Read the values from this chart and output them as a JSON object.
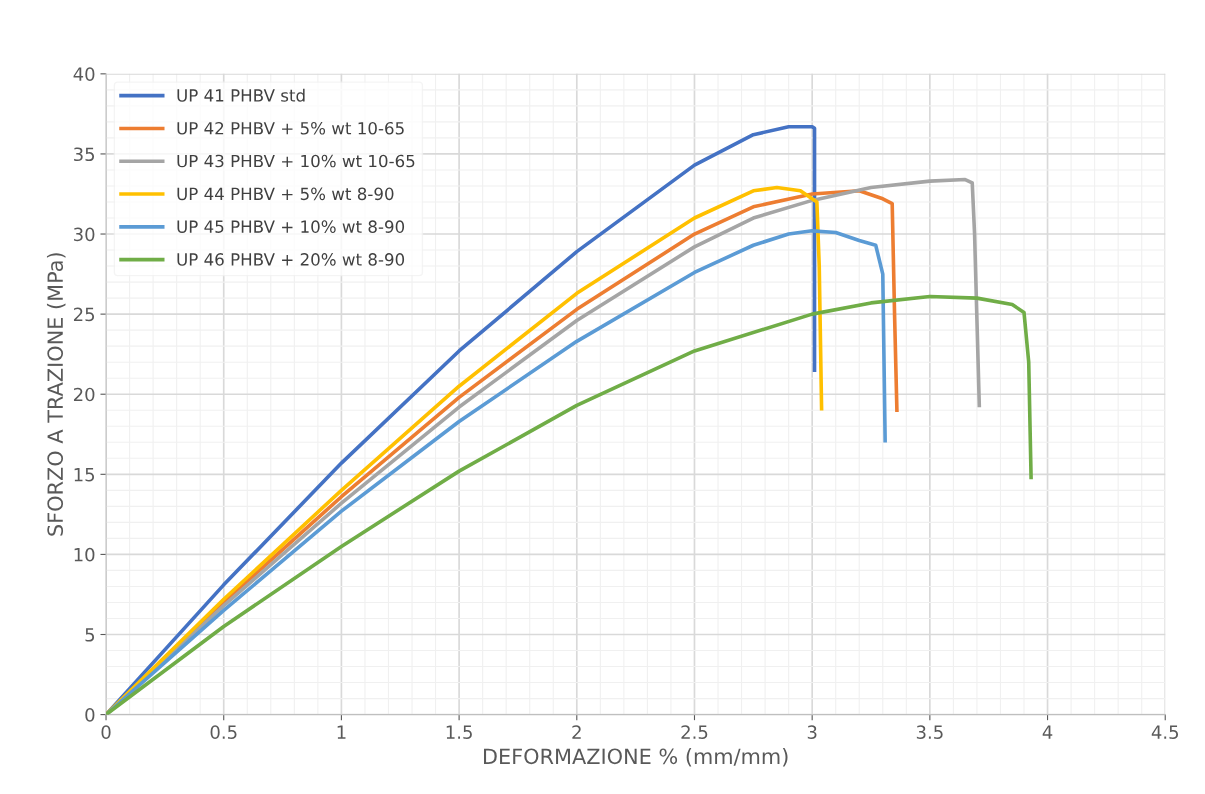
{
  "chart_data": {
    "type": "line",
    "xlabel": "DEFORMAZIONE % (mm/mm)",
    "ylabel": "SFORZO A TRAZIONE (MPa)",
    "xlim": [
      0,
      4.5
    ],
    "ylim": [
      0,
      40
    ],
    "xticks": [
      0,
      0.5,
      1,
      1.5,
      2,
      2.5,
      3,
      3.5,
      4,
      4.5
    ],
    "yticks": [
      0,
      5,
      10,
      15,
      20,
      25,
      30,
      35,
      40
    ],
    "grid": true,
    "legend": "top left",
    "marker": "none",
    "line_style": "solid",
    "series": [
      {
        "name": "UP 41 PHBV std",
        "color": "#4472c4",
        "x": [
          0,
          0.5,
          1,
          1.5,
          2,
          2.5,
          2.75,
          2.9,
          3.0,
          3.01,
          3.01
        ],
        "values": [
          0,
          8.1,
          15.7,
          22.7,
          28.9,
          34.3,
          36.2,
          36.7,
          36.7,
          36.6,
          21.5
        ]
      },
      {
        "name": "UP 42 PHBV + 5% wt 10-65",
        "color": "#ed7d31",
        "x": [
          0,
          0.5,
          1,
          1.5,
          2,
          2.5,
          2.75,
          3,
          3.2,
          3.3,
          3.34,
          3.35,
          3.36
        ],
        "values": [
          0,
          7.0,
          13.6,
          19.8,
          25.3,
          30.0,
          31.7,
          32.5,
          32.7,
          32.2,
          31.9,
          25,
          19.0
        ]
      },
      {
        "name": "UP 43 PHBV + 10% wt 10-65",
        "color": "#a5a5a5",
        "x": [
          0,
          0.5,
          1,
          1.5,
          2,
          2.5,
          2.75,
          3,
          3.25,
          3.5,
          3.65,
          3.68,
          3.69,
          3.71
        ],
        "values": [
          0,
          6.8,
          13.2,
          19.2,
          24.6,
          29.2,
          31.0,
          32.1,
          32.9,
          33.3,
          33.4,
          33.2,
          30,
          19.3
        ]
      },
      {
        "name": "UP 44 PHBV + 5% wt 8-90",
        "color": "#ffc000",
        "x": [
          0,
          0.5,
          1,
          1.5,
          2,
          2.5,
          2.75,
          2.85,
          2.95,
          3.02,
          3.03,
          3.04
        ],
        "values": [
          0,
          7.2,
          14.0,
          20.5,
          26.3,
          31.0,
          32.7,
          32.9,
          32.7,
          32.0,
          28,
          19.1
        ]
      },
      {
        "name": "UP 45 PHBV + 10% wt 8-90",
        "color": "#5b9bd5",
        "x": [
          0,
          0.5,
          1,
          1.5,
          2,
          2.5,
          2.75,
          2.9,
          3.0,
          3.1,
          3.2,
          3.27,
          3.3,
          3.31
        ],
        "values": [
          0,
          6.5,
          12.7,
          18.3,
          23.3,
          27.6,
          29.3,
          30.0,
          30.2,
          30.1,
          29.6,
          29.3,
          27.5,
          17.1
        ]
      },
      {
        "name": "UP 46 PHBV + 20% wt 8-90",
        "color": "#70ad47",
        "x": [
          0,
          0.5,
          1,
          1.5,
          2,
          2.5,
          3,
          3.25,
          3.5,
          3.7,
          3.85,
          3.9,
          3.92,
          3.93
        ],
        "values": [
          0,
          5.5,
          10.5,
          15.2,
          19.3,
          22.7,
          25.0,
          25.7,
          26.1,
          26.0,
          25.6,
          25.1,
          22,
          14.8
        ]
      }
    ]
  }
}
